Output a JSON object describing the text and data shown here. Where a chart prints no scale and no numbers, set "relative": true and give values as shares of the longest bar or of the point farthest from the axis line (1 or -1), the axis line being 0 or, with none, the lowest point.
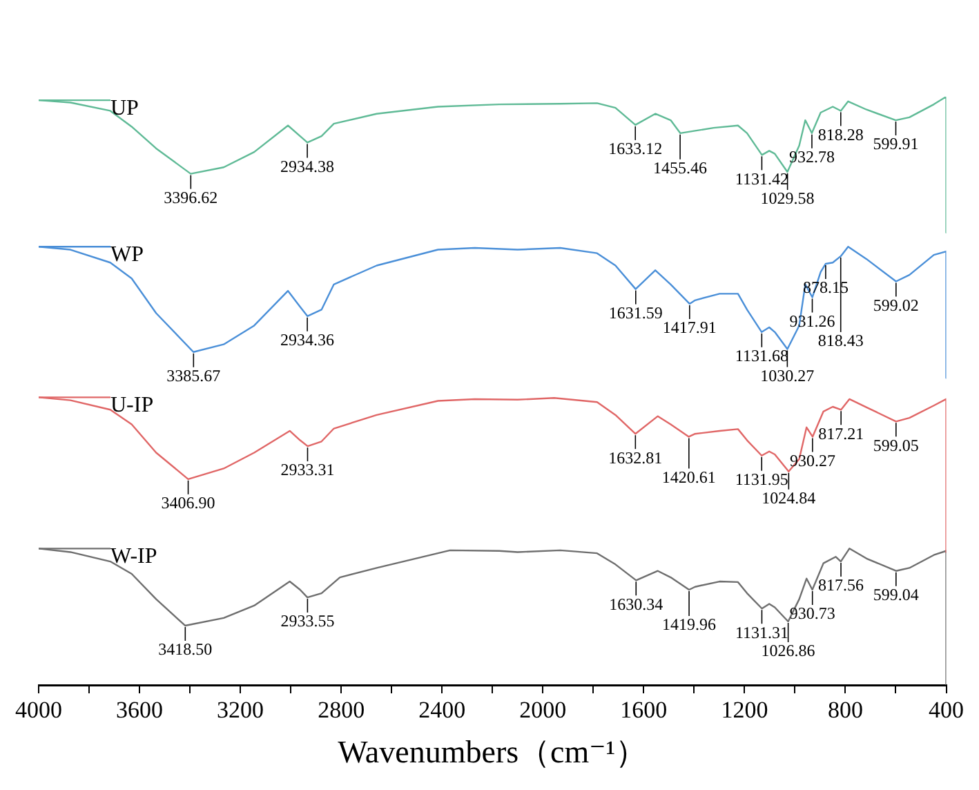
{
  "chart_data": {
    "type": "line",
    "relative": true,
    "xlabel": "Wavenumbers（cm⁻¹）",
    "xlim": [
      4000,
      400
    ],
    "xticks": [
      4000,
      {
        "value": 3800,
        "label": null
      },
      3600,
      {
        "value": 3400,
        "label": null
      },
      3200,
      {
        "value": 3000,
        "label": null
      },
      2800,
      {
        "value": 2600,
        "label": null
      },
      2400,
      {
        "value": 2200,
        "label": null
      },
      2000,
      {
        "value": 1800,
        "label": null
      },
      1600,
      {
        "value": 1400,
        "label": null
      },
      1200,
      {
        "value": 1000,
        "label": null
      },
      800,
      {
        "value": 600,
        "label": null
      },
      400
    ],
    "grid": false,
    "legend": "left",
    "marker": "none",
    "line_style": "solid",
    "series": [
      {
        "name": "UP",
        "color": "#5fba96",
        "x": [
          4000,
          3874,
          3716,
          3631,
          3534,
          3397,
          3266,
          3145,
          3011,
          2963,
          2934,
          2878,
          2829,
          2659,
          2416,
          2173,
          1931,
          1785,
          1712,
          1633,
          1554,
          1493,
          1455,
          1396,
          1323,
          1226,
          1190,
          1131,
          1102,
          1080,
          1030,
          983,
          959,
          933,
          898,
          850,
          818,
          789,
          716,
          600,
          546,
          449,
          400,
          400
        ],
        "values": [
          0.994,
          0.99,
          0.976,
          0.949,
          0.912,
          0.869,
          0.88,
          0.906,
          0.951,
          0.933,
          0.922,
          0.933,
          0.954,
          0.971,
          0.983,
          0.987,
          0.988,
          0.989,
          0.981,
          0.952,
          0.971,
          0.96,
          0.938,
          0.942,
          0.947,
          0.951,
          0.938,
          0.901,
          0.908,
          0.903,
          0.872,
          0.917,
          0.96,
          0.938,
          0.973,
          0.983,
          0.976,
          0.992,
          0.978,
          0.96,
          0.965,
          0.987,
          1,
          0.769
        ]
      },
      {
        "name": "WP",
        "color": "#4a8fd8",
        "x": [
          4000,
          3874,
          3716,
          3631,
          3534,
          3386,
          3266,
          3145,
          3011,
          2963,
          2934,
          2878,
          2829,
          2659,
          2416,
          2270,
          2100,
          1931,
          1785,
          1712,
          1632,
          1554,
          1493,
          1418,
          1396,
          1299,
          1226,
          1190,
          1132,
          1102,
          1080,
          1030,
          983,
          959,
          931,
          898,
          878,
          850,
          818,
          789,
          716,
          599,
          546,
          449,
          400,
          400
        ],
        "values": [
          0.745,
          0.74,
          0.718,
          0.691,
          0.632,
          0.566,
          0.579,
          0.611,
          0.67,
          0.643,
          0.627,
          0.638,
          0.681,
          0.713,
          0.74,
          0.743,
          0.74,
          0.743,
          0.734,
          0.713,
          0.673,
          0.705,
          0.681,
          0.648,
          0.654,
          0.665,
          0.665,
          0.638,
          0.6,
          0.608,
          0.6,
          0.571,
          0.611,
          0.681,
          0.659,
          0.702,
          0.716,
          0.718,
          0.729,
          0.745,
          0.724,
          0.686,
          0.697,
          0.731,
          0.737,
          0.522
        ]
      },
      {
        "name": "U-IP",
        "color": "#e06666",
        "x": [
          4000,
          3874,
          3716,
          3631,
          3534,
          3407,
          3266,
          3145,
          3004,
          2963,
          2933,
          2878,
          2829,
          2659,
          2416,
          2270,
          2100,
          1955,
          1785,
          1712,
          1633,
          1544,
          1493,
          1421,
          1396,
          1299,
          1226,
          1190,
          1132,
          1102,
          1080,
          1025,
          983,
          954,
          930,
          887,
          850,
          817,
          784,
          716,
          599,
          546,
          449,
          400,
          400
        ],
        "values": [
          0.489,
          0.484,
          0.468,
          0.443,
          0.395,
          0.35,
          0.368,
          0.395,
          0.432,
          0.416,
          0.406,
          0.414,
          0.436,
          0.459,
          0.483,
          0.486,
          0.485,
          0.488,
          0.481,
          0.459,
          0.427,
          0.457,
          0.443,
          0.422,
          0.427,
          0.432,
          0.435,
          0.416,
          0.39,
          0.397,
          0.392,
          0.363,
          0.384,
          0.438,
          0.422,
          0.465,
          0.473,
          0.468,
          0.486,
          0.472,
          0.448,
          0.454,
          0.475,
          0.486,
          0.226
        ]
      },
      {
        "name": "W-IP",
        "color": "#6e6e6e",
        "x": [
          4000,
          3874,
          3716,
          3631,
          3534,
          3419,
          3266,
          3145,
          3004,
          2963,
          2934,
          2878,
          2805,
          2659,
          2368,
          2173,
          2100,
          1931,
          1785,
          1712,
          1630,
          1544,
          1493,
          1420,
          1396,
          1299,
          1226,
          1190,
          1131,
          1102,
          1080,
          1027,
          983,
          954,
          931,
          887,
          838,
          818,
          784,
          716,
          599,
          546,
          449,
          400,
          400
        ],
        "values": [
          0.232,
          0.226,
          0.21,
          0.189,
          0.146,
          0.101,
          0.114,
          0.135,
          0.176,
          0.162,
          0.149,
          0.156,
          0.183,
          0.199,
          0.229,
          0.228,
          0.226,
          0.229,
          0.224,
          0.205,
          0.178,
          0.194,
          0.183,
          0.162,
          0.167,
          0.176,
          0.175,
          0.156,
          0.13,
          0.138,
          0.132,
          0.108,
          0.146,
          0.181,
          0.162,
          0.207,
          0.218,
          0.21,
          0.232,
          0.215,
          0.194,
          0.199,
          0.221,
          0.228,
          0
        ]
      }
    ],
    "annotations": [
      {
        "text": "3396.62",
        "x": 3396.62,
        "y": 0.869
      },
      {
        "text": "2934.38",
        "x": 2934.38,
        "y": 0.922
      },
      {
        "text": "1633.12",
        "x": 1633.12,
        "y": 0.952
      },
      {
        "text": "1455.46",
        "x": 1455.46,
        "y": 0.938
      },
      {
        "text": "1131.42",
        "x": 1131.42,
        "y": 0.901
      },
      {
        "text": "1029.58",
        "x": 1029.58,
        "y": 0.872
      },
      {
        "text": "932.78",
        "x": 932.78,
        "y": 0.938
      },
      {
        "text": "818.28",
        "x": 818.28,
        "y": 0.976
      },
      {
        "text": "599.91",
        "x": 599.91,
        "y": 0.96
      },
      {
        "text": "3385.67",
        "x": 3385.67,
        "y": 0.566
      },
      {
        "text": "2934.36",
        "x": 2934.36,
        "y": 0.627
      },
      {
        "text": "1631.59",
        "x": 1631.59,
        "y": 0.673
      },
      {
        "text": "1417.91",
        "x": 1417.91,
        "y": 0.648
      },
      {
        "text": "1131.68",
        "x": 1131.68,
        "y": 0.6
      },
      {
        "text": "1030.27",
        "x": 1030.27,
        "y": 0.571
      },
      {
        "text": "931.26",
        "x": 931.26,
        "y": 0.659
      },
      {
        "text": "878.15",
        "x": 878.15,
        "y": 0.716
      },
      {
        "text": "818.43",
        "x": 818.43,
        "y": 0.729
      },
      {
        "text": "599.02",
        "x": 599.02,
        "y": 0.686
      },
      {
        "text": "3406.90",
        "x": 3406.9,
        "y": 0.35
      },
      {
        "text": "2933.31",
        "x": 2933.31,
        "y": 0.406
      },
      {
        "text": "1632.81",
        "x": 1632.81,
        "y": 0.427
      },
      {
        "text": "1420.61",
        "x": 1420.61,
        "y": 0.422
      },
      {
        "text": "1131.95",
        "x": 1131.95,
        "y": 0.39
      },
      {
        "text": "1024.84",
        "x": 1024.84,
        "y": 0.363
      },
      {
        "text": "930.27",
        "x": 930.27,
        "y": 0.422
      },
      {
        "text": "817.21",
        "x": 817.21,
        "y": 0.468
      },
      {
        "text": "599.05",
        "x": 599.05,
        "y": 0.448
      },
      {
        "text": "3418.50",
        "x": 3418.5,
        "y": 0.101
      },
      {
        "text": "2933.55",
        "x": 2933.55,
        "y": 0.149
      },
      {
        "text": "1630.34",
        "x": 1630.34,
        "y": 0.178
      },
      {
        "text": "1419.96",
        "x": 1419.96,
        "y": 0.162
      },
      {
        "text": "1131.31",
        "x": 1131.31,
        "y": 0.13
      },
      {
        "text": "1026.86",
        "x": 1026.86,
        "y": 0.108
      },
      {
        "text": "930.73",
        "x": 930.73,
        "y": 0.162
      },
      {
        "text": "817.56",
        "x": 817.56,
        "y": 0.21
      },
      {
        "text": "599.04",
        "x": 599.04,
        "y": 0.194
      }
    ]
  }
}
